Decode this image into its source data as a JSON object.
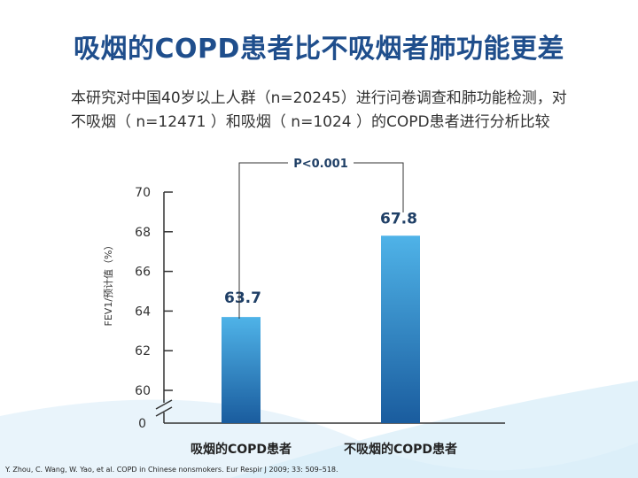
{
  "slide": {
    "title": "吸烟的COPD患者比不吸烟者肺功能更差",
    "description": "本研究对中国40岁以上人群（n=20245）进行问卷调查和肺功能检测，对不吸烟（ n=12471 ）和吸烟（ n=1024 ）的COPD患者进行分析比较",
    "citation": "Y. Zhou, C. Wang, W. Yao, et al. COPD in Chinese nonsmokers. Eur Respir J 2009; 33: 509–518."
  },
  "colors": {
    "title": "#1f4e8c",
    "bar_top": "#4fb3e8",
    "bar_bottom": "#1a5c9e",
    "swoosh": "#d6ecf8"
  },
  "chart_data": {
    "type": "bar",
    "categories": [
      "吸烟的COPD患者",
      "不吸烟的COPD患者"
    ],
    "values": [
      63.7,
      67.8
    ],
    "value_labels": [
      "63.7",
      "67.8"
    ],
    "ylabel": "FEV1/预计值（%）",
    "yticks": [
      0,
      60,
      62,
      64,
      66,
      68,
      70
    ],
    "ytick_labels": [
      "0",
      "60",
      "62",
      "64",
      "66",
      "68",
      "70"
    ],
    "ylim": [
      60,
      70
    ],
    "axis_break": true,
    "significance": "P<0.001",
    "grid": false,
    "legend": "none"
  }
}
